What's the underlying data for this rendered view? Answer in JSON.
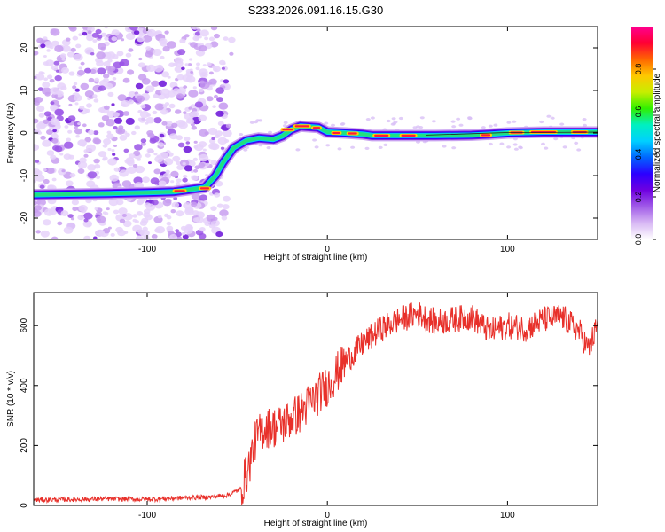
{
  "figure": {
    "title": "S233.2026.091.16.15.G30"
  },
  "chart_data": [
    {
      "type": "heatmap",
      "name": "spectrogram",
      "xlabel": "Height of straight line (km)",
      "ylabel": "Frequency (Hz)",
      "xlim": [
        -163,
        150
      ],
      "ylim": [
        -25,
        25
      ],
      "xticks": [
        -100,
        0,
        100
      ],
      "yticks": [
        -20,
        -10,
        0,
        10,
        20
      ],
      "colorbar": {
        "label": "Normalized spectral amplitude",
        "range": [
          0,
          1
        ],
        "ticks": [
          0.0,
          0.2,
          0.4,
          0.6,
          0.8
        ],
        "tick_labels": [
          "0.0",
          "0.2",
          "0.4",
          "0.6",
          "0.8"
        ],
        "colors": [
          "#ffffff",
          "#d8b8f4",
          "#a15ce8",
          "#6f00e0",
          "#2c00ff",
          "#0066ff",
          "#00d0ff",
          "#00f0c0",
          "#30f000",
          "#c8ee00",
          "#ffc800",
          "#ff6600",
          "#ff0033",
          "#ff0090"
        ]
      },
      "ridge": {
        "description_points_x": [
          -163,
          -120,
          -100,
          -85,
          -75,
          -68,
          -62,
          -58,
          -52,
          -45,
          -38,
          -30,
          -25,
          -20,
          -15,
          -5,
          0,
          10,
          20,
          25,
          40,
          60,
          80,
          90,
          100,
          120,
          150
        ],
        "description_points_y": [
          -14.5,
          -14.2,
          -14.0,
          -13.8,
          -13.2,
          -12.8,
          -10,
          -7,
          -3.5,
          -1.8,
          -1.2,
          -1.5,
          -0.7,
          0.8,
          1.6,
          1.3,
          0.2,
          0.0,
          -0.3,
          -0.6,
          -0.6,
          -0.6,
          -0.5,
          -0.3,
          0.0,
          0.2,
          0.2
        ]
      }
    },
    {
      "type": "line",
      "name": "snr",
      "xlabel": "Height of straight line (km)",
      "ylabel": "SNR (10 * v/v)",
      "xlim": [
        -163,
        150
      ],
      "ylim": [
        0,
        710
      ],
      "xticks": [
        -100,
        0,
        100
      ],
      "yticks": [
        0,
        200,
        400,
        600
      ],
      "color": "#e8302a",
      "series": [
        {
          "name": "SNR",
          "x": [
            -163,
            -140,
            -120,
            -100,
            -80,
            -65,
            -55,
            -48,
            -44,
            -40,
            -35,
            -30,
            -25,
            -20,
            -15,
            -10,
            -5,
            0,
            5,
            10,
            20,
            30,
            40,
            50,
            60,
            70,
            80,
            90,
            100,
            110,
            120,
            130,
            140,
            145,
            150
          ],
          "values": [
            18,
            20,
            22,
            20,
            25,
            28,
            35,
            55,
            120,
            220,
            260,
            260,
            270,
            290,
            310,
            340,
            370,
            400,
            440,
            480,
            540,
            590,
            620,
            640,
            610,
            620,
            630,
            580,
            600,
            590,
            620,
            630,
            580,
            520,
            600
          ]
        }
      ]
    }
  ]
}
